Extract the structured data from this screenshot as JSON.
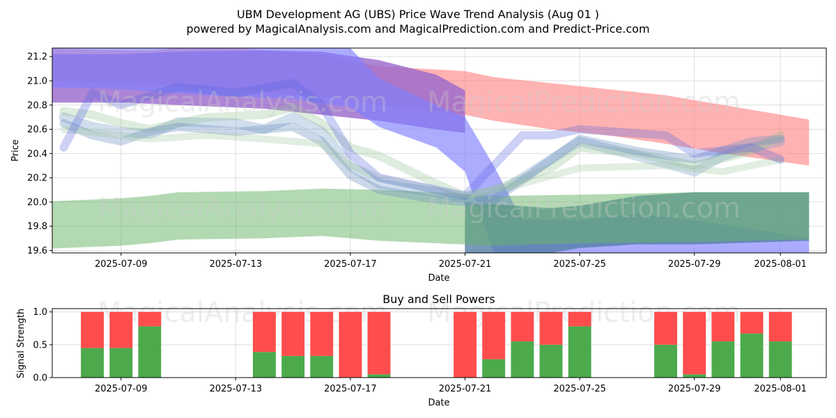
{
  "title_line1": "UBM Development AG (UBS) Price Wave Trend Analysis (Aug 01 )",
  "title_line2": "powered by MagicalAnalysis.com and MagicalPrediction.com and Predict-Price.com",
  "watermarks": [
    "MagicalAnalysis.com",
    "MagicalPrediction.com"
  ],
  "chart_data": [
    {
      "type": "area",
      "xlabel": "Date",
      "ylabel": "Price",
      "ylim": [
        19.58,
        21.27
      ],
      "xlim": [
        "2025-07-06",
        "2025-08-02"
      ],
      "grid": true,
      "x_ticks": [
        "2025-07-09",
        "2025-07-13",
        "2025-07-17",
        "2025-07-21",
        "2025-07-25",
        "2025-07-29",
        "2025-08-01"
      ],
      "y_ticks": [
        19.6,
        19.8,
        20.0,
        20.2,
        20.4,
        20.6,
        20.8,
        21.0,
        21.2
      ],
      "bands": [
        {
          "color": "#ff7f7f",
          "opacity": 0.6,
          "x": [
            "2025-07-06",
            "2025-07-09",
            "2025-07-10",
            "2025-07-11",
            "2025-07-13",
            "2025-07-16",
            "2025-07-18",
            "2025-07-21",
            "2025-07-22",
            "2025-07-24",
            "2025-07-26",
            "2025-07-28",
            "2025-07-30",
            "2025-08-02"
          ],
          "upper": [
            21.27,
            21.25,
            21.25,
            21.27,
            21.27,
            21.22,
            21.12,
            21.08,
            21.03,
            20.98,
            20.93,
            20.88,
            20.8,
            20.68
          ],
          "lower": [
            21.0,
            20.98,
            20.97,
            20.95,
            20.92,
            20.87,
            20.8,
            20.72,
            20.67,
            20.6,
            20.55,
            20.48,
            20.4,
            20.3
          ]
        },
        {
          "color": "#9966cc",
          "opacity": 0.8,
          "x": [
            "2025-07-06",
            "2025-07-09",
            "2025-07-11",
            "2025-07-14",
            "2025-07-16",
            "2025-07-18",
            "2025-07-20",
            "2025-07-21"
          ],
          "upper": [
            21.22,
            21.22,
            21.24,
            21.25,
            21.24,
            21.17,
            21.05,
            20.92
          ],
          "lower": [
            20.82,
            20.82,
            20.8,
            20.77,
            20.72,
            20.67,
            20.6,
            20.57
          ]
        },
        {
          "color": "#8080ff",
          "opacity": 0.65,
          "x": [
            "2025-07-06",
            "2025-07-09",
            "2025-07-12",
            "2025-07-15",
            "2025-07-17",
            "2025-07-18",
            "2025-07-20",
            "2025-07-21",
            "2025-07-22",
            "2025-07-23",
            "2025-07-25",
            "2025-07-27",
            "2025-07-29",
            "2025-08-02"
          ],
          "upper": [
            21.27,
            21.27,
            21.27,
            21.27,
            21.27,
            21.02,
            20.8,
            20.7,
            20.3,
            19.85,
            19.85,
            19.9,
            19.85,
            19.7
          ],
          "lower": [
            20.95,
            20.93,
            20.88,
            20.85,
            20.78,
            20.62,
            20.45,
            20.25,
            19.58,
            19.58,
            19.58,
            19.58,
            19.58,
            19.58
          ]
        },
        {
          "color": "#5580a8",
          "opacity": 0.8,
          "x": [
            "2025-07-21",
            "2025-07-22",
            "2025-07-24",
            "2025-07-25",
            "2025-07-27",
            "2025-07-29",
            "2025-08-02"
          ],
          "upper": [
            20.0,
            19.98,
            19.95,
            19.97,
            20.05,
            20.08,
            20.08
          ],
          "lower": [
            19.58,
            19.58,
            19.58,
            19.62,
            19.65,
            19.65,
            19.68
          ]
        },
        {
          "color": "#66b366",
          "opacity": 0.5,
          "x": [
            "2025-07-06",
            "2025-07-09",
            "2025-07-10",
            "2025-07-11",
            "2025-07-14",
            "2025-07-16",
            "2025-07-18",
            "2025-07-20",
            "2025-07-22",
            "2025-07-25",
            "2025-07-29",
            "2025-08-02"
          ],
          "upper": [
            20.0,
            20.03,
            20.05,
            20.08,
            20.09,
            20.11,
            20.1,
            20.08,
            20.05,
            20.06,
            20.08,
            20.08
          ],
          "lower": [
            19.61,
            19.64,
            19.66,
            19.69,
            19.7,
            19.72,
            19.68,
            19.66,
            19.64,
            19.66,
            19.67,
            19.69
          ]
        }
      ],
      "wave_lines": [
        {
          "color": "#7aa0c8",
          "opacity": 0.35,
          "width": 14,
          "x": [
            "2025-07-07",
            "2025-07-08",
            "2025-07-09",
            "2025-07-10",
            "2025-07-11",
            "2025-07-13",
            "2025-07-14",
            "2025-07-15",
            "2025-07-16",
            "2025-07-17",
            "2025-07-18",
            "2025-07-20",
            "2025-07-21",
            "2025-07-22",
            "2025-07-23",
            "2025-07-24",
            "2025-07-25",
            "2025-07-27",
            "2025-07-28",
            "2025-07-29",
            "2025-07-30",
            "2025-07-31",
            "2025-08-01"
          ],
          "y": [
            20.7,
            20.62,
            20.58,
            20.56,
            20.66,
            20.65,
            20.6,
            20.7,
            20.58,
            20.3,
            20.15,
            20.08,
            20.02,
            20.05,
            20.2,
            20.35,
            20.5,
            20.38,
            20.32,
            20.25,
            20.38,
            20.45,
            20.5
          ]
        },
        {
          "color": "#8fbf8f",
          "opacity": 0.3,
          "width": 12,
          "x": [
            "2025-07-07",
            "2025-07-08",
            "2025-07-09",
            "2025-07-10",
            "2025-07-12",
            "2025-07-14",
            "2025-07-15",
            "2025-07-16",
            "2025-07-17",
            "2025-07-18",
            "2025-07-20",
            "2025-07-21",
            "2025-07-22",
            "2025-07-24",
            "2025-07-25",
            "2025-07-27",
            "2025-07-29",
            "2025-07-31",
            "2025-08-01"
          ],
          "y": [
            20.75,
            20.72,
            20.65,
            20.6,
            20.7,
            20.72,
            20.78,
            20.65,
            20.45,
            20.38,
            20.15,
            20.05,
            20.1,
            20.28,
            20.45,
            20.4,
            20.3,
            20.42,
            20.55
          ]
        },
        {
          "color": "#6a8fc0",
          "opacity": 0.35,
          "width": 12,
          "x": [
            "2025-07-07",
            "2025-07-08",
            "2025-07-09",
            "2025-07-10",
            "2025-07-11",
            "2025-07-13",
            "2025-07-15",
            "2025-07-16",
            "2025-07-17",
            "2025-07-18",
            "2025-07-20",
            "2025-07-21",
            "2025-07-22",
            "2025-07-23",
            "2025-07-25",
            "2025-07-27",
            "2025-07-29",
            "2025-07-31",
            "2025-08-01"
          ],
          "y": [
            20.65,
            20.55,
            20.5,
            20.58,
            20.62,
            20.58,
            20.62,
            20.5,
            20.22,
            20.1,
            20.02,
            20.0,
            20.02,
            20.18,
            20.52,
            20.42,
            20.35,
            20.5,
            20.52
          ]
        },
        {
          "color": "#9fc89f",
          "opacity": 0.3,
          "width": 10,
          "x": [
            "2025-07-07",
            "2025-07-09",
            "2025-07-10",
            "2025-07-12",
            "2025-07-14",
            "2025-07-16",
            "2025-07-17",
            "2025-07-18",
            "2025-07-20",
            "2025-07-21",
            "2025-07-23",
            "2025-07-25",
            "2025-07-28",
            "2025-07-30",
            "2025-08-01"
          ],
          "y": [
            20.6,
            20.55,
            20.52,
            20.55,
            20.52,
            20.48,
            20.3,
            20.2,
            20.1,
            20.05,
            20.15,
            20.28,
            20.3,
            20.25,
            20.35
          ]
        },
        {
          "color": "#5566dd",
          "opacity": 0.3,
          "width": 12,
          "x": [
            "2025-07-07",
            "2025-07-08",
            "2025-07-09",
            "2025-07-11",
            "2025-07-13",
            "2025-07-15",
            "2025-07-16",
            "2025-07-17",
            "2025-07-18",
            "2025-07-21",
            "2025-07-22",
            "2025-07-23",
            "2025-07-24",
            "2025-07-25",
            "2025-07-28",
            "2025-07-29",
            "2025-07-31",
            "2025-08-01"
          ],
          "y": [
            20.45,
            20.9,
            20.8,
            20.95,
            20.9,
            20.98,
            20.8,
            20.4,
            20.2,
            20.05,
            20.3,
            20.55,
            20.55,
            20.6,
            20.55,
            20.4,
            20.45,
            20.35
          ]
        }
      ]
    },
    {
      "type": "bar",
      "title": "Buy and Sell Powers",
      "xlabel": "Date",
      "ylabel": "Signal Strength",
      "ylim": [
        0,
        1.05
      ],
      "y_ticks": [
        0.0,
        0.5,
        1.0
      ],
      "x_ticks": [
        "2025-07-09",
        "2025-07-13",
        "2025-07-17",
        "2025-07-21",
        "2025-07-25",
        "2025-07-29",
        "2025-08-01"
      ],
      "buy_color": "#4caa4c",
      "sell_color": "#ff4d4d",
      "x": [
        "2025-07-08",
        "2025-07-09",
        "2025-07-10",
        "2025-07-14",
        "2025-07-15",
        "2025-07-16",
        "2025-07-17",
        "2025-07-18",
        "2025-07-21",
        "2025-07-22",
        "2025-07-23",
        "2025-07-24",
        "2025-07-25",
        "2025-07-28",
        "2025-07-29",
        "2025-07-30",
        "2025-07-31",
        "2025-08-01"
      ],
      "buy": [
        0.45,
        0.45,
        0.78,
        0.39,
        0.33,
        0.33,
        0.0,
        0.05,
        0.0,
        0.28,
        0.55,
        0.5,
        0.78,
        0.5,
        0.05,
        0.55,
        0.67,
        0.55
      ],
      "sell": [
        0.55,
        0.55,
        0.22,
        0.61,
        0.67,
        0.67,
        1.0,
        0.95,
        1.0,
        0.72,
        0.45,
        0.5,
        0.22,
        0.5,
        0.95,
        0.45,
        0.33,
        0.45
      ]
    }
  ]
}
